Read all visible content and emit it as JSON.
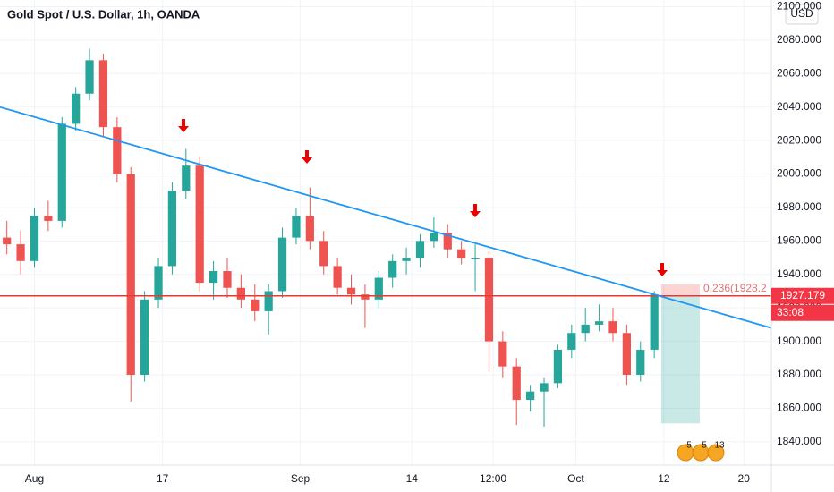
{
  "chart_data": {
    "type": "candlestick",
    "title": "Gold Spot / U.S. Dollar, 1h, OANDA",
    "currency": "USD",
    "up_color": "#26a69a",
    "down_color": "#ef5350",
    "xlim": [
      -0.5,
      55.5
    ],
    "xticks": [
      {
        "value": 2,
        "label": "Aug"
      },
      {
        "value": 11.3,
        "label": "17"
      },
      {
        "value": 21.3,
        "label": "Sep"
      },
      {
        "value": 29.4,
        "label": "14"
      },
      {
        "value": 35.3,
        "label": "12:00"
      },
      {
        "value": 41.3,
        "label": "Oct"
      },
      {
        "value": 47.7,
        "label": "12"
      },
      {
        "value": 53.5,
        "label": "20"
      }
    ],
    "ylim": [
      1826,
      2104
    ],
    "yticks": [
      {
        "value": 1840,
        "label": "1840.000"
      },
      {
        "value": 1860,
        "label": "1860.000"
      },
      {
        "value": 1880,
        "label": "1880.000"
      },
      {
        "value": 1900,
        "label": "1900.000"
      },
      {
        "value": 1920,
        "label": "1920.000"
      },
      {
        "value": 1940,
        "label": "1940.000"
      },
      {
        "value": 1960,
        "label": "1960.000"
      },
      {
        "value": 1980,
        "label": "1980.000"
      },
      {
        "value": 2000,
        "label": "2000.000"
      },
      {
        "value": 2020,
        "label": "2020.000"
      },
      {
        "value": 2040,
        "label": "2040.000"
      },
      {
        "value": 2060,
        "label": "2060.000"
      },
      {
        "value": 2080,
        "label": "2080.000"
      },
      {
        "value": 2100,
        "label": "2100.000"
      }
    ],
    "open": [
      1962,
      1958,
      1948,
      1975,
      1972,
      2030,
      2048,
      2068,
      2028,
      2000,
      1880,
      1925,
      1945,
      1990,
      2005,
      1935,
      1942,
      1932,
      1925,
      1918,
      1930,
      1962,
      1975,
      1960,
      1945,
      1932,
      1928,
      1925,
      1938,
      1948,
      1950,
      1960,
      1965,
      1955,
      1950,
      1950,
      1900,
      1885,
      1865,
      1870,
      1875,
      1895,
      1905,
      1910,
      1912,
      1905,
      1880,
      1895
    ],
    "high": [
      1972,
      1966,
      1980,
      1984,
      2034,
      2052,
      2075,
      2072,
      2034,
      2004,
      1930,
      1950,
      1995,
      2015,
      2010,
      1948,
      1950,
      1940,
      1934,
      1934,
      1968,
      1980,
      1992,
      1966,
      1950,
      1940,
      1934,
      1942,
      1952,
      1956,
      1964,
      1974,
      1970,
      1960,
      1958,
      1954,
      1906,
      1890,
      1874,
      1878,
      1898,
      1910,
      1920,
      1922,
      1920,
      1910,
      1900,
      1930
    ],
    "low": [
      1952,
      1940,
      1944,
      1966,
      1968,
      2026,
      2044,
      2022,
      1995,
      1864,
      1876,
      1920,
      1940,
      1985,
      1930,
      1925,
      1926,
      1920,
      1912,
      1904,
      1926,
      1958,
      1955,
      1940,
      1928,
      1922,
      1908,
      1920,
      1932,
      1940,
      1944,
      1956,
      1950,
      1946,
      1930,
      1882,
      1878,
      1850,
      1858,
      1849,
      1872,
      1890,
      1900,
      1906,
      1900,
      1874,
      1876,
      1890
    ],
    "close": [
      1958,
      1948,
      1975,
      1972,
      2030,
      2048,
      2068,
      2028,
      2000,
      1880,
      1925,
      1945,
      1990,
      2005,
      1935,
      1942,
      1932,
      1925,
      1918,
      1930,
      1962,
      1975,
      1960,
      1945,
      1932,
      1928,
      1925,
      1938,
      1948,
      1950,
      1960,
      1965,
      1955,
      1950,
      1950,
      1900,
      1885,
      1865,
      1870,
      1875,
      1895,
      1905,
      1910,
      1912,
      1905,
      1880,
      1895,
      1928
    ],
    "price_line": 1927.179,
    "price_label": 1927.179,
    "countdown": "33:08",
    "trendline": {
      "x": [
        -0.5,
        55.5
      ],
      "y": [
        2040,
        1908
      ],
      "color": "#2196f3"
    },
    "position": {
      "x": [
        47.5,
        50.3
      ],
      "entry": 1927.179,
      "stop": 1934,
      "target": 1851
    },
    "fib_label": "0.236(1928.2",
    "events": [
      "5",
      "5",
      "13"
    ]
  }
}
